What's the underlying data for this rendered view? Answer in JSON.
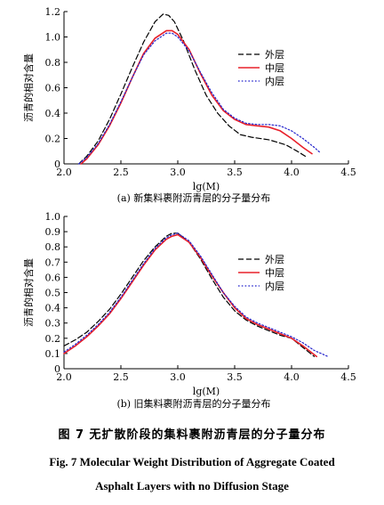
{
  "chart_data": [
    {
      "type": "line",
      "panel": "(a)",
      "caption": "新集料裹附沥青层的分子量分布",
      "xlabel": "lg(M)",
      "ylabel": "沥青的相对含量",
      "xlim": [
        2.0,
        4.5
      ],
      "ylim": [
        0,
        1.2
      ],
      "xticks": [
        "2.0",
        "2.5",
        "3.0",
        "3.5",
        "4.0",
        "4.5"
      ],
      "yticks": [
        "0",
        "0.2",
        "0.4",
        "0.6",
        "0.8",
        "1.0",
        "1.2"
      ],
      "legend": "top-right",
      "grid": false,
      "series": [
        {
          "name": "外层",
          "color": "#000000",
          "dash": "dashed",
          "x": [
            2.13,
            2.2,
            2.3,
            2.4,
            2.5,
            2.6,
            2.7,
            2.8,
            2.87,
            2.92,
            2.97,
            3.05,
            3.15,
            3.25,
            3.35,
            3.45,
            3.55,
            3.65,
            3.8,
            3.95,
            4.05,
            4.12
          ],
          "y": [
            0.0,
            0.06,
            0.18,
            0.35,
            0.55,
            0.76,
            0.96,
            1.12,
            1.18,
            1.17,
            1.12,
            0.97,
            0.74,
            0.54,
            0.4,
            0.3,
            0.23,
            0.21,
            0.19,
            0.15,
            0.1,
            0.06
          ]
        },
        {
          "name": "中层",
          "color": "#e8202a",
          "dash": "solid",
          "x": [
            2.15,
            2.2,
            2.3,
            2.4,
            2.5,
            2.6,
            2.7,
            2.8,
            2.9,
            2.95,
            3.0,
            3.1,
            3.2,
            3.3,
            3.4,
            3.5,
            3.6,
            3.7,
            3.8,
            3.9,
            4.0,
            4.1,
            4.18
          ],
          "y": [
            0.0,
            0.04,
            0.15,
            0.3,
            0.48,
            0.68,
            0.87,
            0.99,
            1.05,
            1.05,
            1.02,
            0.9,
            0.71,
            0.54,
            0.42,
            0.35,
            0.31,
            0.3,
            0.29,
            0.26,
            0.2,
            0.13,
            0.08
          ]
        },
        {
          "name": "内层",
          "color": "#2222cc",
          "dash": "dotted",
          "x": [
            2.13,
            2.2,
            2.3,
            2.4,
            2.5,
            2.6,
            2.7,
            2.8,
            2.9,
            2.95,
            3.0,
            3.1,
            3.2,
            3.3,
            3.4,
            3.5,
            3.6,
            3.7,
            3.8,
            3.9,
            4.0,
            4.1,
            4.2,
            4.25
          ],
          "y": [
            0.0,
            0.05,
            0.16,
            0.31,
            0.49,
            0.68,
            0.86,
            0.97,
            1.03,
            1.03,
            1.0,
            0.89,
            0.72,
            0.56,
            0.43,
            0.36,
            0.32,
            0.31,
            0.31,
            0.3,
            0.26,
            0.2,
            0.13,
            0.09
          ]
        }
      ]
    },
    {
      "type": "line",
      "panel": "(b)",
      "caption": "旧集料裹附沥青层的分子量分布",
      "xlabel": "lg(M)",
      "ylabel": "沥青的相对含量",
      "xlim": [
        2.0,
        4.5
      ],
      "ylim": [
        0,
        1.0
      ],
      "xticks": [
        "2.0",
        "2.5",
        "3.0",
        "3.5",
        "4.0",
        "4.5"
      ],
      "yticks": [
        "0",
        "0.1",
        "0.2",
        "0.3",
        "0.4",
        "0.5",
        "0.6",
        "0.7",
        "0.8",
        "0.9",
        "1.0"
      ],
      "legend": "top-right",
      "grid": false,
      "series": [
        {
          "name": "外层",
          "color": "#000000",
          "dash": "dashed",
          "x": [
            2.0,
            2.1,
            2.2,
            2.3,
            2.4,
            2.5,
            2.6,
            2.7,
            2.8,
            2.9,
            2.95,
            3.0,
            3.1,
            3.2,
            3.3,
            3.4,
            3.5,
            3.6,
            3.7,
            3.8,
            3.9,
            4.0,
            4.1,
            4.2
          ],
          "y": [
            0.15,
            0.19,
            0.24,
            0.31,
            0.39,
            0.49,
            0.6,
            0.71,
            0.8,
            0.87,
            0.89,
            0.89,
            0.83,
            0.72,
            0.59,
            0.47,
            0.38,
            0.32,
            0.28,
            0.25,
            0.22,
            0.2,
            0.14,
            0.08
          ]
        },
        {
          "name": "中层",
          "color": "#e8202a",
          "dash": "solid",
          "x": [
            2.0,
            2.1,
            2.2,
            2.3,
            2.4,
            2.5,
            2.6,
            2.7,
            2.8,
            2.9,
            2.95,
            3.0,
            3.1,
            3.2,
            3.3,
            3.4,
            3.5,
            3.6,
            3.7,
            3.8,
            3.9,
            4.0,
            4.1,
            4.22
          ],
          "y": [
            0.1,
            0.15,
            0.21,
            0.28,
            0.36,
            0.46,
            0.57,
            0.68,
            0.78,
            0.85,
            0.87,
            0.88,
            0.83,
            0.73,
            0.61,
            0.5,
            0.4,
            0.33,
            0.29,
            0.26,
            0.23,
            0.2,
            0.15,
            0.08
          ]
        },
        {
          "name": "内层",
          "color": "#2222cc",
          "dash": "dotted",
          "x": [
            2.0,
            2.1,
            2.2,
            2.3,
            2.4,
            2.5,
            2.6,
            2.7,
            2.8,
            2.9,
            2.95,
            3.0,
            3.1,
            3.2,
            3.3,
            3.4,
            3.5,
            3.6,
            3.7,
            3.8,
            3.9,
            4.0,
            4.1,
            4.2,
            4.32
          ],
          "y": [
            0.11,
            0.16,
            0.22,
            0.29,
            0.37,
            0.47,
            0.58,
            0.69,
            0.79,
            0.86,
            0.88,
            0.89,
            0.84,
            0.74,
            0.62,
            0.5,
            0.41,
            0.34,
            0.3,
            0.27,
            0.24,
            0.21,
            0.17,
            0.12,
            0.08
          ]
        }
      ]
    }
  ],
  "figure": {
    "caption_cn": "图 7   无扩散阶段的集料裹附沥青层的分子量分布",
    "caption_en_line1": "Fig. 7   Molecular Weight Distribution of Aggregate Coated",
    "caption_en_line2": "Asphalt Layers with no Diffusion Stage"
  }
}
